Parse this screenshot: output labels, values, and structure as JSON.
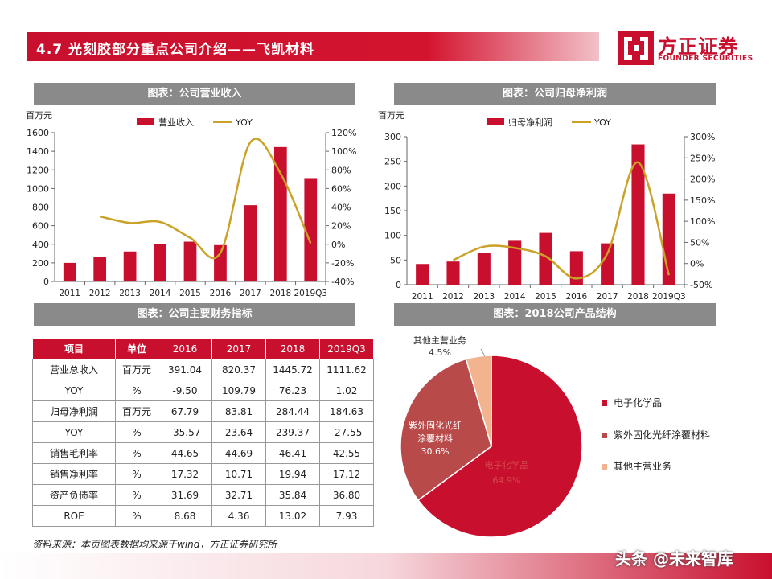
{
  "header": {
    "title": "4.7 光刻胶部分重点公司介绍——飞凯材料",
    "logo_cn": "方正证券",
    "logo_en": "FOUNDER SECURITIES"
  },
  "colors": {
    "brand_red": "#c8102e",
    "line_gold": "#c9a227",
    "pie_mid": "#b84a4a",
    "pie_light": "#f2b48e"
  },
  "panels": {
    "revenue_title": "图表：公司营业收入",
    "profit_title": "图表：公司归母净利润",
    "table_title": "图表：公司主要财务指标",
    "pie_title": "图表：2018公司产品结构"
  },
  "chart_data": [
    {
      "type": "bar",
      "ylabel": "百万元",
      "categories": [
        "2011",
        "2012",
        "2013",
        "2014",
        "2015",
        "2016",
        "2017",
        "2018",
        "2019Q3"
      ],
      "series": [
        {
          "name": "营业收入",
          "type": "bar",
          "axis": "left",
          "values": [
            200,
            262,
            322,
            400,
            428,
            391.04,
            820.37,
            1445.72,
            1111.62
          ]
        },
        {
          "name": "YOY",
          "type": "line",
          "axis": "right",
          "values": [
            null,
            30,
            23,
            24,
            7,
            -9.5,
            109.79,
            76.23,
            1.02
          ]
        }
      ],
      "ylim_left": [
        0,
        1600
      ],
      "yticks_left": [
        "0",
        "200",
        "400",
        "600",
        "800",
        "1000",
        "1200",
        "1400",
        "1600"
      ],
      "ylim_right": [
        -40,
        120
      ],
      "yticks_right": [
        "-40%",
        "-20%",
        "0%",
        "20%",
        "40%",
        "60%",
        "80%",
        "100%",
        "120%"
      ]
    },
    {
      "type": "bar",
      "ylabel": "百万元",
      "categories": [
        "2011",
        "2012",
        "2013",
        "2014",
        "2015",
        "2016",
        "2017",
        "2018",
        "2019Q3"
      ],
      "series": [
        {
          "name": "归母净利润",
          "type": "bar",
          "axis": "left",
          "values": [
            42,
            47,
            65,
            89,
            105,
            67.79,
            83.81,
            284.44,
            184.63
          ]
        },
        {
          "name": "YOY",
          "type": "line",
          "axis": "right",
          "values": [
            null,
            8,
            40,
            37,
            17,
            -35.57,
            23.64,
            239.37,
            -27.55
          ]
        }
      ],
      "ylim_left": [
        0,
        300
      ],
      "yticks_left": [
        "0",
        "50",
        "100",
        "150",
        "200",
        "250",
        "300"
      ],
      "ylim_right": [
        -50,
        300
      ],
      "yticks_right": [
        "-50%",
        "0%",
        "50%",
        "100%",
        "150%",
        "200%",
        "250%",
        "300%"
      ]
    },
    {
      "type": "pie",
      "slices": [
        {
          "name": "电子化学品",
          "value": 64.9,
          "label": "64.9%",
          "color": "#c8102e"
        },
        {
          "name": "紫外固化光纤涂覆材料",
          "value": 30.6,
          "label": "30.6%",
          "color": "#b84a4a"
        },
        {
          "name": "其他主营业务",
          "value": 4.5,
          "label": "4.5%",
          "color": "#f2b48e"
        }
      ]
    }
  ],
  "table": {
    "headers": [
      "项目",
      "单位",
      "2016",
      "2017",
      "2018",
      "2019Q3"
    ],
    "rows": [
      [
        "营业总收入",
        "百万元",
        "391.04",
        "820.37",
        "1445.72",
        "1111.62"
      ],
      [
        "YOY",
        "%",
        "-9.50",
        "109.79",
        "76.23",
        "1.02"
      ],
      [
        "归母净利润",
        "百万元",
        "67.79",
        "83.81",
        "284.44",
        "184.63"
      ],
      [
        "YOY",
        "%",
        "-35.57",
        "23.64",
        "239.37",
        "-27.55"
      ],
      [
        "销售毛利率",
        "%",
        "44.65",
        "44.69",
        "46.41",
        "42.55"
      ],
      [
        "销售净利率",
        "%",
        "17.32",
        "10.71",
        "19.94",
        "17.12"
      ],
      [
        "资产负债率",
        "%",
        "31.69",
        "32.71",
        "35.84",
        "36.80"
      ],
      [
        "ROE",
        "%",
        "8.68",
        "4.36",
        "13.02",
        "7.93"
      ]
    ]
  },
  "pie_labels": {
    "other_name": "其他主营业务",
    "uv_name_1": "紫外固化光纤",
    "uv_name_2": "涂覆材料",
    "chem_name": "电子化学品"
  },
  "source": "资料来源：本页图表数据均来源于wind，方正证券研究所",
  "watermark": "头条 @未来智库"
}
